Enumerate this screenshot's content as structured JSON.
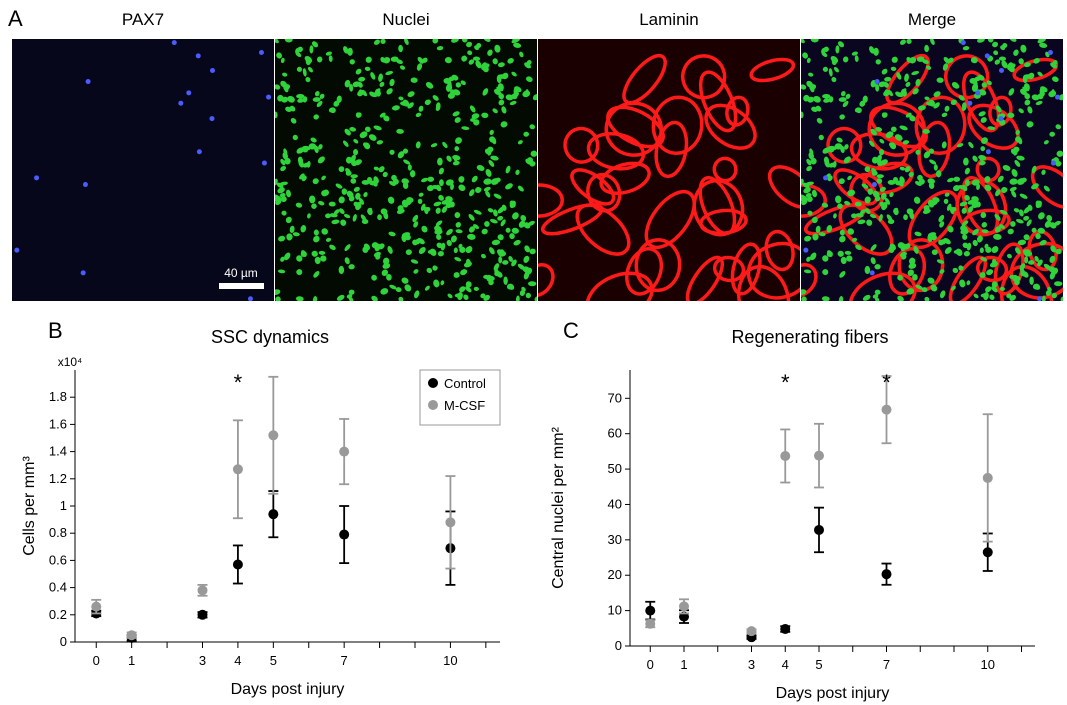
{
  "panel_labels": {
    "a": "A",
    "b": "B",
    "c": "C"
  },
  "images": [
    {
      "title": "PAX7"
    },
    {
      "title": "Nuclei"
    },
    {
      "title": "Laminin"
    },
    {
      "title": "Merge"
    }
  ],
  "scale_bar_label": "40 µm",
  "colors": {
    "control": "#000000",
    "mcsf": "#999999",
    "pax7": "#2b36c8",
    "nuclei": "#2fd33a",
    "laminin": "#ff1a1a"
  },
  "chart_data": [
    {
      "type": "scatter",
      "title": "SSC dynamics",
      "xlabel": "Days post injury",
      "ylabel": "Cells per mm³",
      "y_multiplier": "x10⁴",
      "x_ticks": [
        0,
        1,
        3,
        4,
        5,
        7,
        10
      ],
      "y_ticks": [
        0,
        0.2,
        0.4,
        0.6,
        0.8,
        1,
        1.2,
        1.4,
        1.6,
        1.8
      ],
      "y_tick_labels": [
        "0",
        "0.2",
        "0.4",
        "0.6",
        "0.8",
        "1",
        "1.2",
        "1.4",
        "1.6",
        "1.8"
      ],
      "ylim": [
        0,
        2.0
      ],
      "legend_position": "top-right",
      "significance": [
        {
          "x": 4,
          "label": "*"
        }
      ],
      "series": [
        {
          "name": "Control",
          "x": [
            0,
            1,
            3,
            4,
            5,
            7,
            10
          ],
          "y": [
            0.21,
            0.03,
            0.2,
            0.57,
            0.94,
            0.79,
            0.69
          ],
          "err": [
            0.02,
            0.02,
            0.02,
            0.14,
            0.17,
            0.21,
            0.27
          ]
        },
        {
          "name": "M-CSF",
          "x": [
            0,
            1,
            3,
            4,
            5,
            7,
            10
          ],
          "y": [
            0.26,
            0.05,
            0.38,
            1.27,
            1.52,
            1.4,
            0.88
          ],
          "err": [
            0.05,
            0.02,
            0.04,
            0.36,
            0.43,
            0.24,
            0.34
          ]
        }
      ]
    },
    {
      "type": "scatter",
      "title": "Regenerating fibers",
      "xlabel": "Days post injury",
      "ylabel": "Central nuclei per mm²",
      "x_ticks": [
        0,
        1,
        3,
        4,
        5,
        7,
        10
      ],
      "y_ticks": [
        0,
        10,
        20,
        30,
        40,
        50,
        60,
        70
      ],
      "y_tick_labels": [
        "0",
        "10",
        "20",
        "30",
        "40",
        "50",
        "60",
        "70"
      ],
      "ylim": [
        0,
        78
      ],
      "significance": [
        {
          "x": 4,
          "label": "*"
        },
        {
          "x": 7,
          "label": "*"
        }
      ],
      "series": [
        {
          "name": "Control",
          "x": [
            0,
            1,
            3,
            4,
            5,
            7,
            10
          ],
          "y": [
            10,
            8.3,
            2.5,
            4.8,
            32.8,
            20.3,
            26.5
          ],
          "err": [
            2.5,
            1.8,
            0.5,
            0.8,
            6.3,
            3,
            5.3
          ]
        },
        {
          "name": "M-CSF",
          "x": [
            0,
            1,
            3,
            4,
            5,
            7,
            10
          ],
          "y": [
            6.3,
            11.2,
            4.2,
            53.7,
            53.8,
            66.8,
            47.5
          ],
          "err": [
            1,
            2,
            0.5,
            7.5,
            9,
            9.5,
            18
          ]
        }
      ]
    }
  ]
}
